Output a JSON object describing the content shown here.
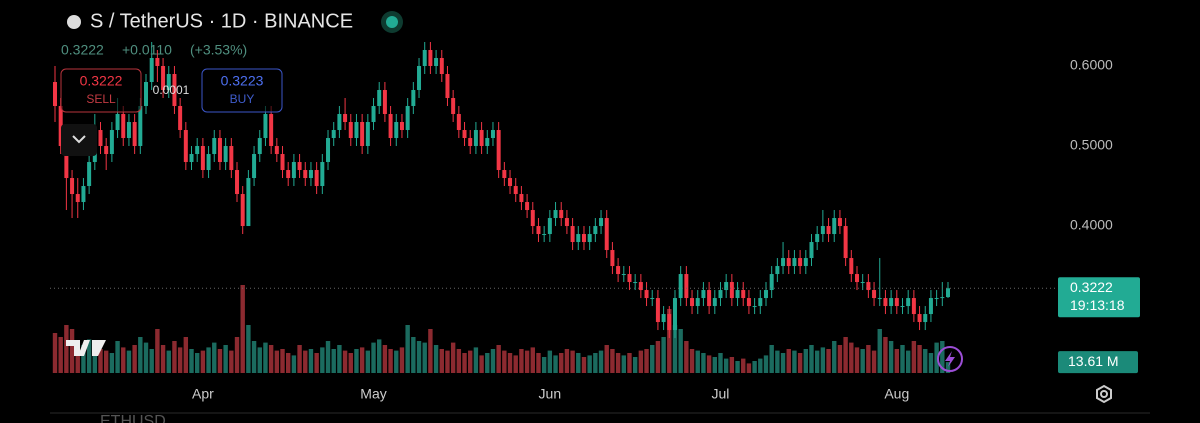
{
  "ui": {
    "symbol": "S / TetherUS · 1D · BINANCE",
    "change": "+0.0110",
    "change_pct": "(+3.53%)",
    "sell_label": "SELL",
    "buy_label": "BUY",
    "buy_price": 0.3223,
    "spread": 0.0001,
    "countdown": "19:13:18",
    "bottom_text": "ETHUSD"
  },
  "chart_data": {
    "type": "candlestick",
    "up_color": "#22ab94",
    "down_color": "#f23645",
    "up_volume_color": "#1b6b5f",
    "down_volume_color": "#8c2a30",
    "xlim": [
      0,
      157
    ],
    "xticks": [
      {
        "value": 26,
        "label": "Apr"
      },
      {
        "value": 56,
        "label": "May"
      },
      {
        "value": 87,
        "label": "Jun"
      },
      {
        "value": 117,
        "label": "Jul"
      },
      {
        "value": 148,
        "label": "Aug"
      }
    ],
    "ylim": [
      0.2138,
      0.6325
    ],
    "yticks": [
      {
        "value": 0.4,
        "label": "0.4000"
      },
      {
        "value": 0.5,
        "label": "0.5000"
      },
      {
        "value": 0.6,
        "label": "0.6000"
      }
    ],
    "volume_lim": [
      0,
      150
    ],
    "last_volume_label": "13.61 M",
    "ohlc": [
      [
        0.58,
        0.6,
        0.53,
        0.55
      ],
      [
        0.55,
        0.56,
        0.49,
        0.5
      ],
      [
        0.5,
        0.51,
        0.42,
        0.46
      ],
      [
        0.46,
        0.47,
        0.41,
        0.44
      ],
      [
        0.44,
        0.46,
        0.41,
        0.43
      ],
      [
        0.43,
        0.46,
        0.42,
        0.45
      ],
      [
        0.45,
        0.49,
        0.44,
        0.48
      ],
      [
        0.48,
        0.54,
        0.47,
        0.52
      ],
      [
        0.52,
        0.53,
        0.49,
        0.5
      ],
      [
        0.5,
        0.51,
        0.47,
        0.49
      ],
      [
        0.49,
        0.53,
        0.48,
        0.52
      ],
      [
        0.52,
        0.56,
        0.51,
        0.54
      ],
      [
        0.54,
        0.55,
        0.5,
        0.51
      ],
      [
        0.51,
        0.54,
        0.5,
        0.53
      ],
      [
        0.53,
        0.54,
        0.49,
        0.5
      ],
      [
        0.5,
        0.56,
        0.49,
        0.55
      ],
      [
        0.55,
        0.59,
        0.54,
        0.58
      ],
      [
        0.58,
        0.63,
        0.57,
        0.61
      ],
      [
        0.61,
        0.62,
        0.58,
        0.6
      ],
      [
        0.6,
        0.61,
        0.56,
        0.57
      ],
      [
        0.57,
        0.6,
        0.56,
        0.59
      ],
      [
        0.59,
        0.6,
        0.54,
        0.55
      ],
      [
        0.55,
        0.56,
        0.51,
        0.52
      ],
      [
        0.52,
        0.53,
        0.47,
        0.48
      ],
      [
        0.48,
        0.5,
        0.47,
        0.49
      ],
      [
        0.49,
        0.51,
        0.48,
        0.5
      ],
      [
        0.5,
        0.51,
        0.46,
        0.47
      ],
      [
        0.47,
        0.5,
        0.46,
        0.49
      ],
      [
        0.49,
        0.52,
        0.48,
        0.51
      ],
      [
        0.51,
        0.52,
        0.47,
        0.48
      ],
      [
        0.48,
        0.51,
        0.47,
        0.5
      ],
      [
        0.5,
        0.51,
        0.46,
        0.47
      ],
      [
        0.47,
        0.48,
        0.43,
        0.44
      ],
      [
        0.44,
        0.45,
        0.39,
        0.4
      ],
      [
        0.4,
        0.47,
        0.4,
        0.46
      ],
      [
        0.46,
        0.5,
        0.45,
        0.49
      ],
      [
        0.49,
        0.52,
        0.48,
        0.51
      ],
      [
        0.51,
        0.55,
        0.5,
        0.54
      ],
      [
        0.54,
        0.55,
        0.49,
        0.5
      ],
      [
        0.5,
        0.51,
        0.48,
        0.49
      ],
      [
        0.49,
        0.5,
        0.46,
        0.47
      ],
      [
        0.47,
        0.48,
        0.45,
        0.46
      ],
      [
        0.46,
        0.49,
        0.45,
        0.48
      ],
      [
        0.48,
        0.49,
        0.46,
        0.47
      ],
      [
        0.47,
        0.48,
        0.45,
        0.46
      ],
      [
        0.46,
        0.48,
        0.45,
        0.47
      ],
      [
        0.47,
        0.48,
        0.44,
        0.45
      ],
      [
        0.45,
        0.49,
        0.44,
        0.48
      ],
      [
        0.48,
        0.52,
        0.47,
        0.51
      ],
      [
        0.51,
        0.53,
        0.5,
        0.52
      ],
      [
        0.52,
        0.55,
        0.51,
        0.54
      ],
      [
        0.54,
        0.56,
        0.52,
        0.53
      ],
      [
        0.53,
        0.54,
        0.5,
        0.51
      ],
      [
        0.51,
        0.54,
        0.5,
        0.53
      ],
      [
        0.53,
        0.54,
        0.49,
        0.5
      ],
      [
        0.5,
        0.54,
        0.49,
        0.53
      ],
      [
        0.53,
        0.56,
        0.52,
        0.55
      ],
      [
        0.55,
        0.58,
        0.54,
        0.57
      ],
      [
        0.57,
        0.58,
        0.53,
        0.54
      ],
      [
        0.54,
        0.55,
        0.5,
        0.51
      ],
      [
        0.51,
        0.54,
        0.5,
        0.53
      ],
      [
        0.53,
        0.54,
        0.51,
        0.52
      ],
      [
        0.52,
        0.56,
        0.51,
        0.55
      ],
      [
        0.55,
        0.58,
        0.54,
        0.57
      ],
      [
        0.57,
        0.61,
        0.56,
        0.6
      ],
      [
        0.6,
        0.63,
        0.59,
        0.62
      ],
      [
        0.62,
        0.63,
        0.59,
        0.6
      ],
      [
        0.6,
        0.62,
        0.59,
        0.61
      ],
      [
        0.61,
        0.62,
        0.58,
        0.59
      ],
      [
        0.59,
        0.6,
        0.55,
        0.56
      ],
      [
        0.56,
        0.57,
        0.53,
        0.54
      ],
      [
        0.54,
        0.55,
        0.51,
        0.52
      ],
      [
        0.52,
        0.53,
        0.5,
        0.51
      ],
      [
        0.51,
        0.52,
        0.49,
        0.5
      ],
      [
        0.5,
        0.53,
        0.49,
        0.52
      ],
      [
        0.52,
        0.53,
        0.49,
        0.5
      ],
      [
        0.5,
        0.52,
        0.49,
        0.51
      ],
      [
        0.51,
        0.53,
        0.5,
        0.52
      ],
      [
        0.52,
        0.53,
        0.46,
        0.47
      ],
      [
        0.47,
        0.48,
        0.45,
        0.46
      ],
      [
        0.46,
        0.47,
        0.44,
        0.45
      ],
      [
        0.45,
        0.46,
        0.43,
        0.44
      ],
      [
        0.44,
        0.45,
        0.42,
        0.43
      ],
      [
        0.43,
        0.44,
        0.41,
        0.42
      ],
      [
        0.42,
        0.43,
        0.39,
        0.4
      ],
      [
        0.4,
        0.41,
        0.38,
        0.39
      ],
      [
        0.39,
        0.4,
        0.38,
        0.39
      ],
      [
        0.39,
        0.42,
        0.38,
        0.41
      ],
      [
        0.41,
        0.43,
        0.4,
        0.42
      ],
      [
        0.42,
        0.43,
        0.4,
        0.41
      ],
      [
        0.41,
        0.42,
        0.39,
        0.4
      ],
      [
        0.4,
        0.41,
        0.37,
        0.38
      ],
      [
        0.38,
        0.4,
        0.37,
        0.39
      ],
      [
        0.39,
        0.4,
        0.37,
        0.38
      ],
      [
        0.38,
        0.4,
        0.37,
        0.39
      ],
      [
        0.39,
        0.41,
        0.38,
        0.4
      ],
      [
        0.4,
        0.42,
        0.39,
        0.41
      ],
      [
        0.41,
        0.42,
        0.36,
        0.37
      ],
      [
        0.37,
        0.38,
        0.34,
        0.35
      ],
      [
        0.35,
        0.36,
        0.33,
        0.34
      ],
      [
        0.34,
        0.35,
        0.33,
        0.34
      ],
      [
        0.34,
        0.35,
        0.32,
        0.33
      ],
      [
        0.33,
        0.34,
        0.32,
        0.33
      ],
      [
        0.33,
        0.34,
        0.31,
        0.32
      ],
      [
        0.32,
        0.33,
        0.3,
        0.31
      ],
      [
        0.31,
        0.32,
        0.3,
        0.31
      ],
      [
        0.31,
        0.32,
        0.27,
        0.28
      ],
      [
        0.28,
        0.3,
        0.27,
        0.29
      ],
      [
        0.29,
        0.3,
        0.26,
        0.27
      ],
      [
        0.27,
        0.32,
        0.26,
        0.31
      ],
      [
        0.31,
        0.35,
        0.3,
        0.34
      ],
      [
        0.34,
        0.35,
        0.3,
        0.31
      ],
      [
        0.31,
        0.32,
        0.29,
        0.3
      ],
      [
        0.3,
        0.32,
        0.29,
        0.31
      ],
      [
        0.31,
        0.33,
        0.3,
        0.32
      ],
      [
        0.32,
        0.33,
        0.29,
        0.3
      ],
      [
        0.3,
        0.32,
        0.29,
        0.31
      ],
      [
        0.31,
        0.33,
        0.3,
        0.32
      ],
      [
        0.32,
        0.34,
        0.31,
        0.33
      ],
      [
        0.33,
        0.34,
        0.3,
        0.31
      ],
      [
        0.31,
        0.33,
        0.3,
        0.32
      ],
      [
        0.32,
        0.33,
        0.3,
        0.31
      ],
      [
        0.31,
        0.32,
        0.29,
        0.3
      ],
      [
        0.3,
        0.31,
        0.29,
        0.3
      ],
      [
        0.3,
        0.32,
        0.29,
        0.31
      ],
      [
        0.31,
        0.33,
        0.3,
        0.32
      ],
      [
        0.32,
        0.35,
        0.31,
        0.34
      ],
      [
        0.34,
        0.36,
        0.33,
        0.35
      ],
      [
        0.35,
        0.38,
        0.34,
        0.36
      ],
      [
        0.36,
        0.37,
        0.34,
        0.35
      ],
      [
        0.35,
        0.37,
        0.34,
        0.36
      ],
      [
        0.36,
        0.37,
        0.34,
        0.35
      ],
      [
        0.35,
        0.37,
        0.34,
        0.36
      ],
      [
        0.36,
        0.39,
        0.35,
        0.38
      ],
      [
        0.38,
        0.4,
        0.37,
        0.39
      ],
      [
        0.39,
        0.42,
        0.38,
        0.4
      ],
      [
        0.4,
        0.41,
        0.38,
        0.39
      ],
      [
        0.39,
        0.42,
        0.38,
        0.41
      ],
      [
        0.41,
        0.42,
        0.39,
        0.4
      ],
      [
        0.4,
        0.41,
        0.35,
        0.36
      ],
      [
        0.36,
        0.37,
        0.33,
        0.34
      ],
      [
        0.34,
        0.35,
        0.32,
        0.33
      ],
      [
        0.33,
        0.34,
        0.32,
        0.33
      ],
      [
        0.33,
        0.34,
        0.31,
        0.32
      ],
      [
        0.32,
        0.33,
        0.3,
        0.31
      ],
      [
        0.31,
        0.36,
        0.3,
        0.31
      ],
      [
        0.31,
        0.32,
        0.29,
        0.3
      ],
      [
        0.3,
        0.32,
        0.29,
        0.31
      ],
      [
        0.31,
        0.32,
        0.29,
        0.3
      ],
      [
        0.3,
        0.31,
        0.29,
        0.3
      ],
      [
        0.3,
        0.32,
        0.29,
        0.31
      ],
      [
        0.31,
        0.32,
        0.28,
        0.29
      ],
      [
        0.29,
        0.3,
        0.27,
        0.28
      ],
      [
        0.28,
        0.3,
        0.27,
        0.29
      ],
      [
        0.29,
        0.32,
        0.28,
        0.31
      ],
      [
        0.31,
        0.32,
        0.3,
        0.31
      ],
      [
        0.31,
        0.33,
        0.3,
        0.3112
      ],
      [
        0.3112,
        0.33,
        0.31,
        0.3222
      ]
    ],
    "volume": [
      50,
      45,
      60,
      55,
      40,
      35,
      42,
      38,
      30,
      28,
      25,
      40,
      32,
      28,
      35,
      45,
      38,
      30,
      55,
      35,
      28,
      40,
      32,
      45,
      30,
      25,
      28,
      32,
      38,
      30,
      35,
      28,
      45,
      110,
      60,
      40,
      32,
      38,
      35,
      28,
      30,
      25,
      22,
      35,
      28,
      30,
      25,
      32,
      40,
      30,
      35,
      28,
      25,
      30,
      32,
      28,
      38,
      42,
      35,
      30,
      28,
      32,
      60,
      45,
      40,
      38,
      55,
      35,
      30,
      28,
      38,
      30,
      25,
      28,
      32,
      22,
      25,
      30,
      35,
      28,
      25,
      22,
      30,
      28,
      32,
      25,
      20,
      28,
      22,
      25,
      30,
      28,
      25,
      20,
      22,
      25,
      28,
      35,
      30,
      25,
      22,
      25,
      20,
      28,
      30,
      35,
      40,
      45,
      80,
      60,
      55,
      40,
      30,
      28,
      25,
      22,
      20,
      25,
      18,
      20,
      15,
      18,
      12,
      15,
      18,
      22,
      35,
      28,
      25,
      30,
      28,
      25,
      30,
      35,
      28,
      32,
      30,
      40,
      35,
      45,
      38,
      32,
      30,
      35,
      28,
      55,
      45,
      40,
      30,
      35,
      28,
      40,
      35,
      30,
      25,
      38,
      40,
      13.61
    ]
  }
}
